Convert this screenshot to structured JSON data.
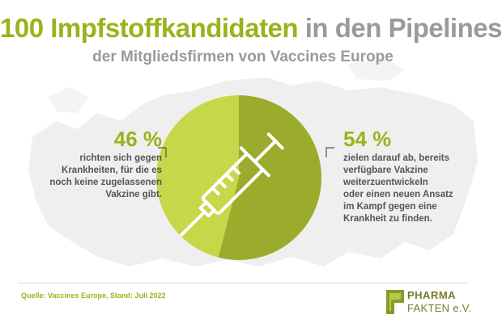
{
  "header": {
    "title_highlight": "100 Impfstoffkandidaten",
    "title_rest": " in den Pipelines",
    "subtitle": "der Mitgliedsfirmen von Vaccines Europe"
  },
  "annotations": {
    "left": {
      "percent": "46 %",
      "lines": [
        "richten sich gegen",
        "Krankheiten, für die es",
        "noch keine zugelassenen",
        "Vakzine gibt."
      ]
    },
    "right": {
      "percent": "54 %",
      "lines": [
        "zielen darauf ab, bereits",
        "verfügbare Vakzine",
        "weiterzuentwickeln",
        "oder einen neuen Ansatz",
        "im Kampf gegen eine",
        "Krankheit zu finden."
      ]
    }
  },
  "footer": {
    "source": "Quelle: Vaccines Europe, Stand: Juli 2022",
    "logo_line1": "PHARMA",
    "logo_line2": "FAKTEN e.V."
  },
  "icons": {
    "center": "syringe-icon",
    "background": "europe-map"
  },
  "colors": {
    "slice_left": "#c6d84a",
    "slice_right": "#9bac2d",
    "accent": "#9bb21c",
    "text_gray": "#9a9a9a",
    "map": "#efefef"
  },
  "chart_data": {
    "type": "pie",
    "categories": [
      "46 %",
      "54 %"
    ],
    "values": [
      46,
      54
    ],
    "title": "100 Impfstoffkandidaten in den Pipelines",
    "subtitle": "der Mitgliedsfirmen von Vaccines Europe"
  }
}
